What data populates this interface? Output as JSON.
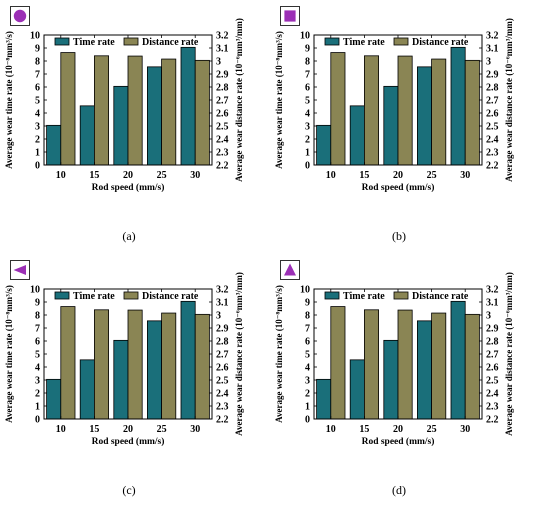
{
  "colors": {
    "time_rate": "#1a6f7a",
    "distance_rate": "#8a8554",
    "marker": "#9b2fb5",
    "axis": "#000000"
  },
  "panels": [
    {
      "caption": "(a)",
      "marker_icon": "circle-icon"
    },
    {
      "caption": "(b)",
      "marker_icon": "square-icon"
    },
    {
      "caption": "(c)",
      "marker_icon": "triangle-left-icon"
    },
    {
      "caption": "(d)",
      "marker_icon": "triangle-up-icon"
    }
  ],
  "chart_data": [
    {
      "type": "bar",
      "panel": "(a)",
      "categories": [
        "10",
        "15",
        "20",
        "25",
        "30"
      ],
      "xlabel": "Rod speed (mm/s)",
      "ylabel_left": "Average wear time rate (10⁻⁸mm³/s)",
      "ylabel_right": "Average wear distance rate (10⁻⁶mm³/mm)",
      "ylim_left": [
        0,
        10
      ],
      "ylim_right": [
        2.2,
        3.2
      ],
      "yticks_left": [
        "0",
        "1",
        "2",
        "3",
        "4",
        "5",
        "6",
        "7",
        "8",
        "9",
        "10"
      ],
      "yticks_right": [
        "2.2",
        "2.3",
        "2.4",
        "2.5",
        "2.6",
        "2.7",
        "2.8",
        "2.9",
        "3",
        "3.1",
        "3.2"
      ],
      "legend_placement": "top",
      "grid": false,
      "series": [
        {
          "name": "Time rate",
          "axis": "left",
          "values": [
            3.05,
            4.55,
            6.05,
            7.55,
            9.05
          ]
        },
        {
          "name": "Distance rate",
          "axis": "right",
          "values": [
            3.065,
            3.04,
            3.038,
            3.015,
            3.005
          ]
        }
      ]
    },
    {
      "type": "bar",
      "panel": "(b)",
      "categories": [
        "10",
        "15",
        "20",
        "25",
        "30"
      ],
      "xlabel": "Rod speed (mm/s)",
      "ylabel_left": "Average wear time rate (10⁻⁸mm³/s)",
      "ylabel_right": "Average wear distance rate (10⁻⁶mm³/mm)",
      "ylim_left": [
        0,
        10
      ],
      "ylim_right": [
        2.2,
        3.2
      ],
      "yticks_left": [
        "0",
        "1",
        "2",
        "3",
        "4",
        "5",
        "6",
        "7",
        "8",
        "9",
        "10"
      ],
      "yticks_right": [
        "2.2",
        "2.3",
        "2.4",
        "2.5",
        "2.6",
        "2.7",
        "2.8",
        "2.9",
        "3",
        "3.1",
        "3.2"
      ],
      "legend_placement": "top",
      "grid": false,
      "series": [
        {
          "name": "Time rate",
          "axis": "left",
          "values": [
            3.05,
            4.55,
            6.05,
            7.55,
            9.05
          ]
        },
        {
          "name": "Distance rate",
          "axis": "right",
          "values": [
            3.065,
            3.04,
            3.038,
            3.015,
            3.005
          ]
        }
      ]
    },
    {
      "type": "bar",
      "panel": "(c)",
      "categories": [
        "10",
        "15",
        "20",
        "25",
        "30"
      ],
      "xlabel": "Rod speed (mm/s)",
      "ylabel_left": "Average wear time rate (10⁻⁸mm³/s)",
      "ylabel_right": "Average wear distance rate (10⁻⁶mm³/mm)",
      "ylim_left": [
        0,
        10
      ],
      "ylim_right": [
        2.2,
        3.2
      ],
      "yticks_left": [
        "0",
        "1",
        "2",
        "3",
        "4",
        "5",
        "6",
        "7",
        "8",
        "9",
        "10"
      ],
      "yticks_right": [
        "2.2",
        "2.3",
        "2.4",
        "2.5",
        "2.6",
        "2.7",
        "2.8",
        "2.9",
        "3",
        "3.1",
        "3.2"
      ],
      "legend_placement": "top",
      "grid": false,
      "series": [
        {
          "name": "Time rate",
          "axis": "left",
          "values": [
            3.05,
            4.55,
            6.05,
            7.55,
            9.05
          ]
        },
        {
          "name": "Distance rate",
          "axis": "right",
          "values": [
            3.065,
            3.04,
            3.038,
            3.015,
            3.005
          ]
        }
      ]
    },
    {
      "type": "bar",
      "panel": "(d)",
      "categories": [
        "10",
        "15",
        "20",
        "25",
        "30"
      ],
      "xlabel": "Rod speed (mm/s)",
      "ylabel_left": "Average wear time rate (10⁻⁸mm³/s)",
      "ylabel_right": "Average wear distance rate (10⁻⁶mm³/mm)",
      "ylim_left": [
        0,
        10
      ],
      "ylim_right": [
        2.2,
        3.2
      ],
      "yticks_left": [
        "0",
        "1",
        "2",
        "3",
        "4",
        "5",
        "6",
        "7",
        "8",
        "9",
        "10"
      ],
      "yticks_right": [
        "2.2",
        "2.3",
        "2.4",
        "2.5",
        "2.6",
        "2.7",
        "2.8",
        "2.9",
        "3",
        "3.1",
        "3.2"
      ],
      "legend_placement": "top",
      "grid": false,
      "series": [
        {
          "name": "Time rate",
          "axis": "left",
          "values": [
            3.05,
            4.55,
            6.05,
            7.55,
            9.05
          ]
        },
        {
          "name": "Distance rate",
          "axis": "right",
          "values": [
            3.065,
            3.04,
            3.038,
            3.015,
            3.005
          ]
        }
      ]
    }
  ]
}
